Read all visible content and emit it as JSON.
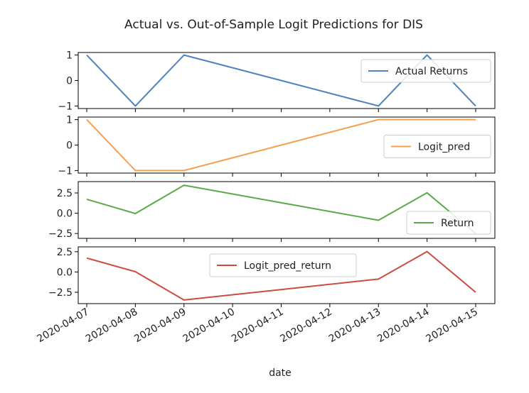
{
  "chart_data": {
    "type": "line",
    "title": "Actual vs. Out-of-Sample Logit Predictions for DIS",
    "xlabel": "date",
    "x": [
      "2020-04-07",
      "2020-04-08",
      "2020-04-09",
      "2020-04-13",
      "2020-04-14",
      "2020-04-15"
    ],
    "x_ticks": [
      "2020-04-07",
      "2020-04-08",
      "2020-04-09",
      "2020-04-10",
      "2020-04-11",
      "2020-04-12",
      "2020-04-13",
      "2020-04-14",
      "2020-04-15"
    ],
    "subplots": [
      {
        "name": "Actual Returns",
        "color": "#4c82be",
        "values": [
          1,
          -1,
          1,
          -1,
          1,
          -1
        ],
        "ylim": [
          -1.1,
          1.1
        ],
        "yticks": [
          1,
          0,
          -1
        ],
        "ytick_labels": [
          "1",
          "0",
          "−1"
        ],
        "legend_position": "upper-right"
      },
      {
        "name": "Logit_pred",
        "color": "#f5a050",
        "values": [
          1,
          -1,
          -1,
          1,
          1,
          1
        ],
        "ylim": [
          -1.1,
          1.1
        ],
        "yticks": [
          1,
          0,
          -1
        ],
        "ytick_labels": [
          "1",
          "0",
          "−1"
        ],
        "legend_position": "center-right"
      },
      {
        "name": "Return",
        "color": "#5aaa4a",
        "values": [
          1.72,
          -0.04,
          3.45,
          -0.87,
          2.52,
          -2.5
        ],
        "ylim": [
          -3.1,
          3.9
        ],
        "yticks": [
          2.5,
          0,
          -2.5
        ],
        "ytick_labels": [
          "2.5",
          "0.0",
          "−2.5"
        ],
        "legend_position": "lower-right"
      },
      {
        "name": "Logit_pred_return",
        "color": "#cc4c40",
        "values": [
          1.72,
          0.04,
          -3.45,
          -0.87,
          2.52,
          -2.5
        ],
        "ylim": [
          -3.9,
          3.1
        ],
        "yticks": [
          2.5,
          0,
          -2.5
        ],
        "ytick_labels": [
          "2.5",
          "0.0",
          "−2.5"
        ],
        "legend_position": "upper-center"
      }
    ],
    "grid": false,
    "legend": "one per subplot"
  }
}
